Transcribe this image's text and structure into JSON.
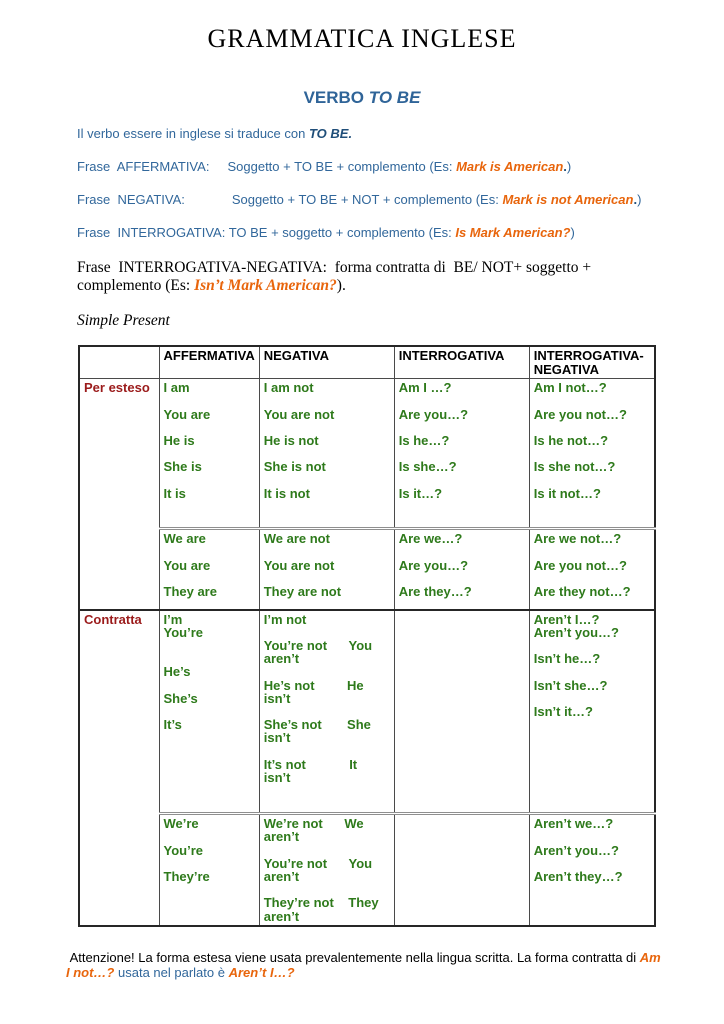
{
  "colors": {
    "blue": "#31679B",
    "navy": "#1F4E79",
    "orange": "#E8650C",
    "darkred": "#9B1B1B",
    "green": "#2E7A1B"
  },
  "page_title": "GRAMMATICA INGLESE",
  "subtitle": {
    "word": "VERBO ",
    "verb": "TO BE"
  },
  "intro": {
    "traduzione": {
      "pre": "Il verbo essere in inglese si traduce con ",
      "strong": "TO BE."
    },
    "affermativa": {
      "pre": "Frase  AFFERMATIVA:     Soggetto + TO BE + complemento (Es: ",
      "example": "Mark is American",
      "dot": ".",
      "close": ")"
    },
    "negativa": {
      "pre": "Frase  NEGATIVA:             Soggetto + TO BE + NOT + complemento (Es: ",
      "example": "Mark is not American",
      "dot": ".",
      "close": ")"
    },
    "interrogativa": {
      "pre": "Frase  INTERROGATIVA: TO BE + soggetto + complemento (Es: ",
      "example": "Is Mark American?",
      "dot": "",
      "close": ")"
    },
    "interrogativa_negativa": {
      "pre": "Frase  INTERROGATIVA-NEGATIVA:  forma contratta di  BE/ NOT+ soggetto + ",
      "pre2": "complemento (Es: ",
      "example": "Isn’t Mark American?",
      "close": ")."
    },
    "section": "Simple Present"
  },
  "table": {
    "headers": [
      "",
      "AFFERMATIVA",
      "NEGATIVA",
      "INTERROGATIVA",
      "INTERROGATIVA-NEGATIVA"
    ],
    "blocks": [
      {
        "label": "Per esteso",
        "rows": [
          {
            "aff": [
              "I am",
              "",
              "You are",
              "",
              "He is",
              "",
              "She is",
              "",
              "It is"
            ],
            "neg": [
              "I am not",
              "",
              "You are not",
              "",
              "He is not",
              "",
              "She is not",
              "",
              "It is not"
            ],
            "int": [
              "Am I …?",
              "",
              "Are you…?",
              "",
              "Is he…?",
              "",
              "Is she…?",
              "",
              "Is it…?"
            ],
            "intneg": [
              "Am I not…?",
              "",
              "Are you not…?",
              "",
              "Is he not…?",
              "",
              "Is she not…?",
              "",
              "Is it not…?"
            ]
          },
          {
            "aff": [
              "We are",
              "",
              "You are",
              "",
              "They are"
            ],
            "neg": [
              "We are not",
              "",
              "You are not",
              "",
              "They are not"
            ],
            "int": [
              "Are we…?",
              "",
              "Are you…?",
              "",
              "Are they…?"
            ],
            "intneg": [
              "Are we not…?",
              "",
              "Are you not…?",
              "",
              "Are they not…?"
            ]
          }
        ]
      },
      {
        "label": "Contratta",
        "rows": [
          {
            "aff": [
              "I’m",
              "You’re",
              "",
              "",
              "He’s",
              "",
              "She’s",
              "",
              "It’s"
            ],
            "neg": [
              "I’m not",
              "",
              "You’re not      You",
              "aren’t",
              "",
              "He’s not         He",
              "isn’t",
              "",
              "She’s not       She",
              "isn’t",
              "",
              "It’s not            It",
              "isn’t"
            ],
            "int": [],
            "intneg": [
              "Aren’t I…?",
              "Aren’t you…?",
              "",
              "Isn’t he…?",
              "",
              "Isn’t she…?",
              "",
              "Isn’t it…?"
            ]
          },
          {
            "aff": [
              "We’re",
              "",
              "You’re",
              "",
              "They’re"
            ],
            "neg": [
              "We’re not      We",
              "aren’t",
              "",
              "You’re not      You",
              "aren’t",
              "",
              "They’re not    They",
              "aren’t"
            ],
            "int": [],
            "intneg": [
              "Aren’t we…?",
              "",
              "Aren’t you…?",
              "",
              "Aren’t they…?"
            ]
          }
        ]
      }
    ]
  },
  "footer": {
    "pre": " Attenzione! La forma estesa viene usata prevalentemente nella lingua scritta. La forma contratta di ",
    "example1": "Am I not…?",
    "mid": " usata nel parlato è ",
    "example2": "Aren’t I…?"
  }
}
